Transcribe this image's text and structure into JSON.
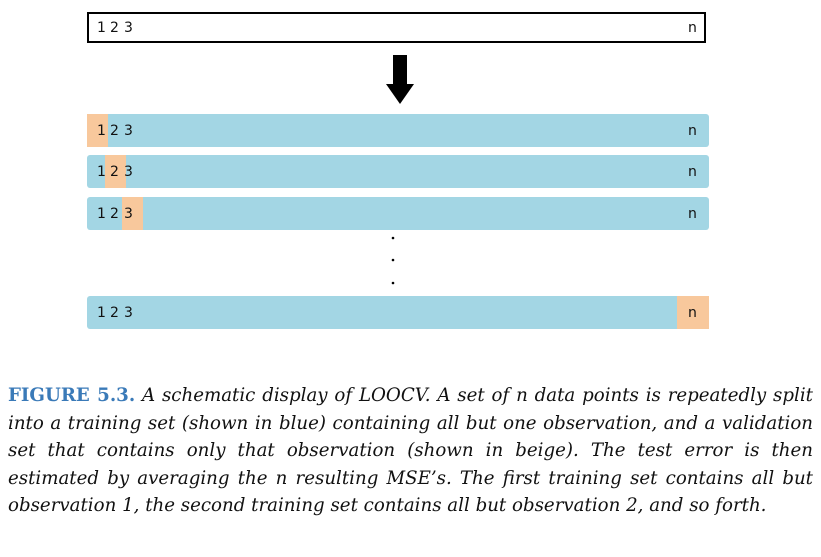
{
  "top": {
    "labels": [
      "1",
      "2",
      "3"
    ],
    "last": "n"
  },
  "rows": [
    {
      "labels": [
        "1",
        "2",
        "3"
      ],
      "last": "n"
    },
    {
      "labels": [
        "1",
        "2",
        "3"
      ],
      "last": "n"
    },
    {
      "labels": [
        "1",
        "2",
        "3"
      ],
      "last": "n"
    },
    {
      "labels": [
        "1",
        "2",
        "3"
      ],
      "last": "n"
    }
  ],
  "caption": {
    "label": "FIGURE 5.3.",
    "text": "A schematic display of LOOCV. A set of n data points is repeatedly split into a training set (shown in blue) containing all but one observation, and a validation set that contains only that observation (shown in beige). The test error is then estimated by averaging the n resulting MSE’s. The first training set contains all but observation 1, the second training set contains all but observation 2, and so forth."
  }
}
